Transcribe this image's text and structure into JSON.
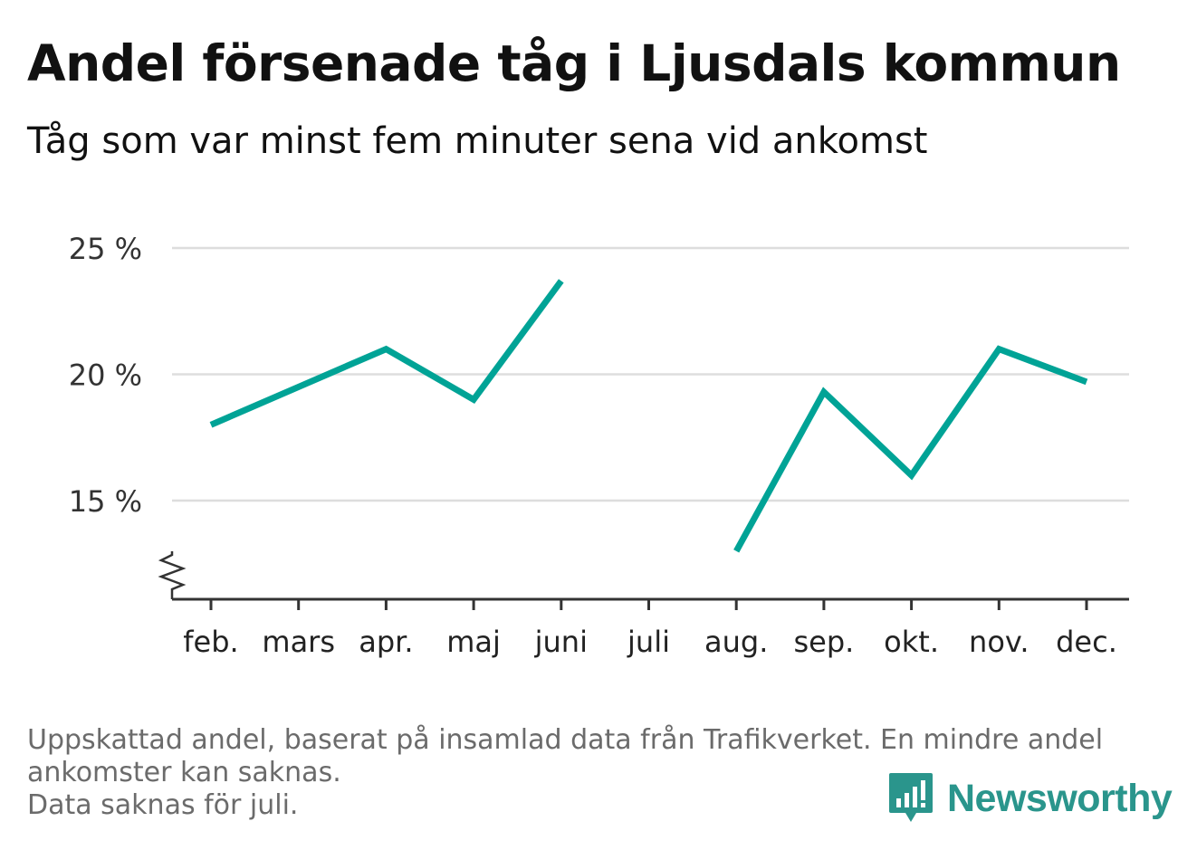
{
  "header": {
    "title": "Andel försenade tåg i Ljusdals kommun",
    "subtitle": "Tåg som var minst fem minuter sena vid ankomst"
  },
  "chart_data": {
    "type": "line",
    "title": "Andel försenade tåg i Ljusdals kommun",
    "subtitle": "Tåg som var minst fem minuter sena vid ankomst",
    "xlabel": "",
    "ylabel": "",
    "categories": [
      "feb.",
      "mars",
      "apr.",
      "maj",
      "juni",
      "juli",
      "aug.",
      "sep.",
      "okt.",
      "nov.",
      "dec."
    ],
    "series": [
      {
        "values": [
          18.0,
          19.5,
          21.0,
          19.0,
          23.7,
          null,
          13.0,
          19.3,
          16.0,
          21.0,
          19.7
        ],
        "color": "#00a396"
      }
    ],
    "y_ticks": [
      15,
      20,
      25
    ],
    "y_tick_labels": [
      "15 %",
      "20 %",
      "25 %"
    ],
    "ylim": [
      11.2,
      25
    ],
    "y_axis_break": true,
    "grid": true,
    "legend": "none"
  },
  "footer": {
    "note_line1": "Uppskattad andel, baserat på insamlad data från Trafikverket. En mindre andel",
    "note_line2": "ankomster kan saknas.",
    "note_line3": "Data saknas för juli.",
    "brand": "Newsworthy",
    "brand_color": "#2a958c",
    "brand_icon": "bar-chart-speech-bubble-icon"
  }
}
